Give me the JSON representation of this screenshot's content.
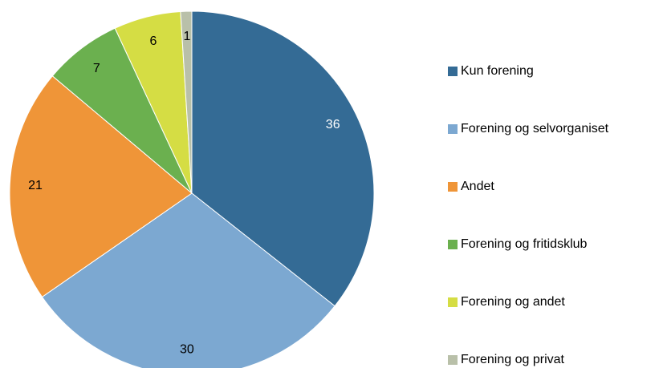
{
  "chart_data": {
    "type": "pie",
    "categories": [
      "Kun forening",
      "Forening og selvorganiset",
      "Andet",
      "Forening og fritidsklub",
      "Forening og andet",
      "Forening og privat"
    ],
    "values": [
      36,
      30,
      21,
      7,
      6,
      1
    ],
    "colors": [
      "#346b95",
      "#7ca8d1",
      "#ef9538",
      "#6bb04f",
      "#d5dd44",
      "#b9c0a9"
    ],
    "legend": "right"
  }
}
